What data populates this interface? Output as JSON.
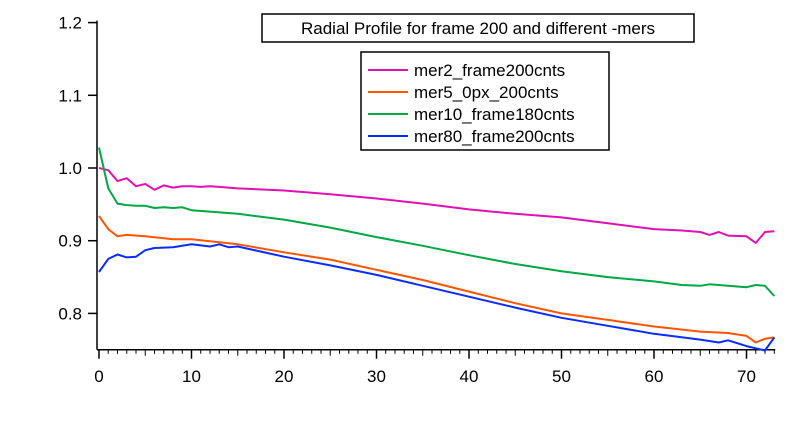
{
  "chart_data": {
    "type": "line",
    "title": "Radial Profile for frame 200 and different -mers",
    "xlabel": "",
    "ylabel": "",
    "xlim": [
      -1,
      73
    ],
    "ylim": [
      0.75,
      1.2
    ],
    "xticks": [
      0,
      10,
      20,
      30,
      40,
      50,
      60,
      70
    ],
    "yticks": [
      0.8,
      0.9,
      1.0,
      1.1,
      1.2
    ],
    "ytick_labels": [
      "0.8",
      "0.9",
      "1.0",
      "1.1",
      "1.2"
    ],
    "grid": false,
    "legend_position": "top-right",
    "series": [
      {
        "name": "mer2_frame200cnts",
        "color": "#e010b4",
        "x": [
          0,
          1,
          2,
          3,
          4,
          5,
          6,
          7,
          8,
          9,
          10,
          11,
          12,
          13,
          14,
          15,
          20,
          25,
          30,
          35,
          40,
          45,
          50,
          55,
          60,
          63,
          65,
          66,
          67,
          68,
          70,
          71,
          72,
          73
        ],
        "y": [
          1.0,
          0.997,
          0.982,
          0.986,
          0.975,
          0.978,
          0.97,
          0.976,
          0.973,
          0.975,
          0.975,
          0.974,
          0.975,
          0.974,
          0.973,
          0.972,
          0.969,
          0.964,
          0.958,
          0.951,
          0.943,
          0.937,
          0.932,
          0.924,
          0.916,
          0.914,
          0.912,
          0.908,
          0.912,
          0.907,
          0.906,
          0.897,
          0.912,
          0.913
        ]
      },
      {
        "name": "mer5_0px_200cnts",
        "color": "#ff5500",
        "x": [
          0,
          1,
          2,
          3,
          5,
          8,
          10,
          15,
          20,
          25,
          30,
          35,
          40,
          45,
          50,
          55,
          60,
          65,
          68,
          70,
          71,
          72,
          73
        ],
        "y": [
          0.934,
          0.916,
          0.906,
          0.908,
          0.906,
          0.902,
          0.902,
          0.895,
          0.884,
          0.874,
          0.86,
          0.846,
          0.83,
          0.814,
          0.8,
          0.791,
          0.782,
          0.775,
          0.773,
          0.769,
          0.76,
          0.765,
          0.767
        ]
      },
      {
        "name": "mer10_frame180cnts",
        "color": "#00a844",
        "x": [
          0,
          1,
          2,
          3,
          4,
          5,
          6,
          7,
          8,
          9,
          10,
          15,
          20,
          25,
          30,
          35,
          40,
          45,
          50,
          55,
          60,
          63,
          65,
          66,
          70,
          71,
          72,
          73
        ],
        "y": [
          1.028,
          0.972,
          0.951,
          0.949,
          0.948,
          0.948,
          0.945,
          0.946,
          0.945,
          0.946,
          0.942,
          0.937,
          0.929,
          0.918,
          0.905,
          0.893,
          0.88,
          0.868,
          0.858,
          0.85,
          0.844,
          0.839,
          0.838,
          0.84,
          0.836,
          0.839,
          0.838,
          0.824
        ]
      },
      {
        "name": "mer80_frame200cnts",
        "color": "#0a2cff",
        "x": [
          0,
          1,
          2,
          3,
          4,
          5,
          6,
          8,
          10,
          12,
          13,
          14,
          15,
          20,
          25,
          30,
          35,
          40,
          45,
          50,
          55,
          60,
          65,
          67,
          68,
          70,
          72,
          73
        ],
        "y": [
          0.857,
          0.875,
          0.881,
          0.877,
          0.878,
          0.887,
          0.89,
          0.891,
          0.895,
          0.892,
          0.895,
          0.891,
          0.892,
          0.878,
          0.866,
          0.853,
          0.838,
          0.823,
          0.808,
          0.794,
          0.783,
          0.772,
          0.764,
          0.76,
          0.763,
          0.755,
          0.749,
          0.767
        ]
      }
    ]
  }
}
